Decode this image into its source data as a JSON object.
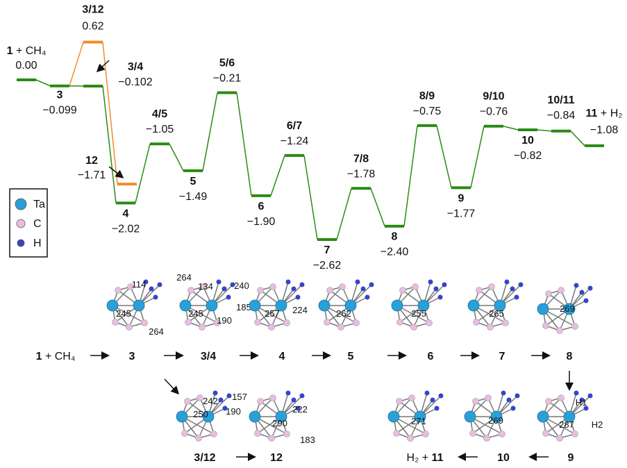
{
  "chart_data": {
    "type": "energy-profile",
    "states": [
      {
        "label": "1",
        "suffix": "+ CH₄",
        "value": 0,
        "value_label": "0.00",
        "color": "#2a8a14"
      },
      {
        "label": "3",
        "value": -0.099,
        "value_label": "−0.099",
        "color": "#2a8a14"
      },
      {
        "label": "3/4",
        "value": -0.102,
        "value_label": "−0.102",
        "color": "#2a8a14"
      },
      {
        "label": "3/12",
        "value": 0.62,
        "value_label": "0.62",
        "color": "#f28c28"
      },
      {
        "label": "12",
        "value": -1.71,
        "value_label": "−1.71",
        "color": "#f28c28"
      },
      {
        "label": "4",
        "value": -2.02,
        "value_label": "−2.02",
        "color": "#2a8a14"
      },
      {
        "label": "4/5",
        "value": -1.05,
        "value_label": "−1.05",
        "color": "#2a8a14"
      },
      {
        "label": "5",
        "value": -1.49,
        "value_label": "−1.49",
        "color": "#2a8a14"
      },
      {
        "label": "5/6",
        "value": -0.21,
        "value_label": "−0.21",
        "color": "#2a8a14"
      },
      {
        "label": "6",
        "value": -1.9,
        "value_label": "−1.90",
        "color": "#2a8a14"
      },
      {
        "label": "6/7",
        "value": -1.24,
        "value_label": "−1.24",
        "color": "#2a8a14"
      },
      {
        "label": "7",
        "value": -2.62,
        "value_label": "−2.62",
        "color": "#2a8a14"
      },
      {
        "label": "7/8",
        "value": -1.78,
        "value_label": "−1.78",
        "color": "#2a8a14"
      },
      {
        "label": "8",
        "value": -2.4,
        "value_label": "−2.40",
        "color": "#2a8a14"
      },
      {
        "label": "8/9",
        "value": -0.75,
        "value_label": "−0.75",
        "color": "#2a8a14"
      },
      {
        "label": "9",
        "value": -1.77,
        "value_label": "−1.77",
        "color": "#2a8a14"
      },
      {
        "label": "9/10",
        "value": -0.76,
        "value_label": "−0.76",
        "color": "#2a8a14"
      },
      {
        "label": "10",
        "value": -0.82,
        "value_label": "−0.82",
        "color": "#2a8a14"
      },
      {
        "label": "10/11",
        "value": -0.84,
        "value_label": "−0.84",
        "color": "#2a8a14"
      },
      {
        "label": "11",
        "suffix": "+ H₂",
        "value": -1.08,
        "value_label": "−1.08",
        "color": "#2a8a14"
      }
    ]
  },
  "legend": [
    {
      "name": "Ta",
      "color": "#2aa0d8"
    },
    {
      "name": "C",
      "color": "#e9bde0"
    },
    {
      "name": "H",
      "color": "#3346c8"
    }
  ],
  "scheme": {
    "items": [
      {
        "label": "1",
        "suffix": "+ CH₄"
      },
      {
        "label": "3",
        "distances": [
          114,
          245,
          264
        ]
      },
      {
        "label": "3/4",
        "distances": [
          264,
          134,
          240,
          185,
          245,
          190
        ]
      },
      {
        "label": "4",
        "distances": [
          257,
          224
        ]
      },
      {
        "label": "5",
        "distances": [
          262
        ]
      },
      {
        "label": "6",
        "distances": [
          255
        ]
      },
      {
        "label": "7",
        "distances": [
          265
        ]
      },
      {
        "label": "8",
        "distances": [
          269
        ]
      },
      {
        "label": "3/12",
        "distances": [
          242,
          157,
          250,
          190
        ]
      },
      {
        "label": "12",
        "distances": [
          222,
          290,
          183
        ]
      },
      {
        "label": "11",
        "prefix": "H₂ +",
        "distances": [
          271
        ]
      },
      {
        "label": "10",
        "distances": [
          269
        ]
      },
      {
        "label": "9",
        "distances": [
          287
        ],
        "atom_labels": [
          "H1",
          "H2"
        ]
      }
    ]
  }
}
